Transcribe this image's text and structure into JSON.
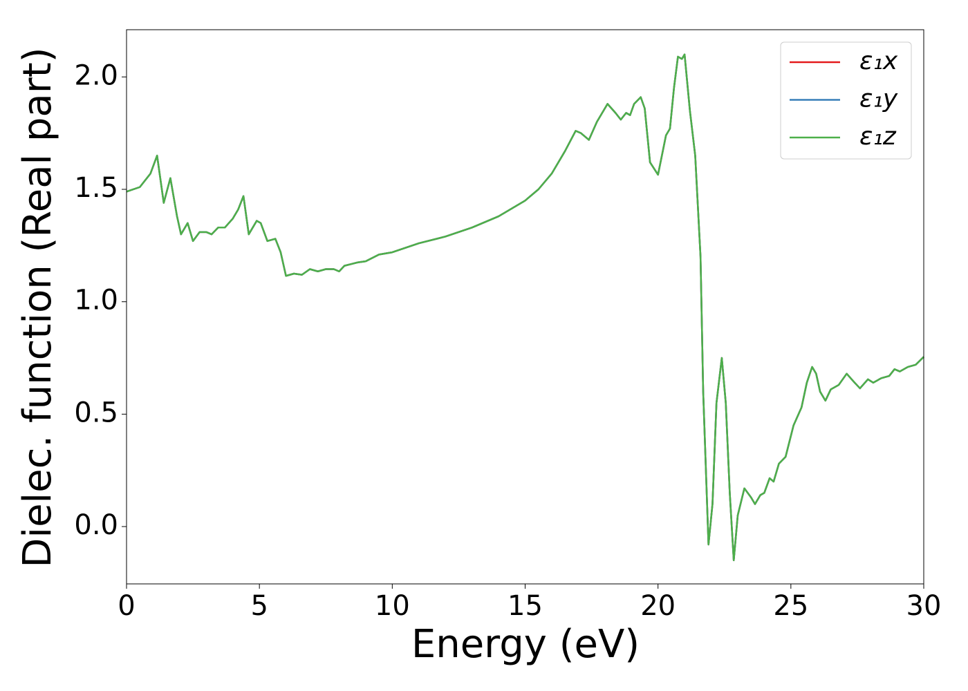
{
  "chart_data": {
    "type": "line",
    "xlabel": "Energy (eV)",
    "ylabel": "Dielec. function (Real part)",
    "x": [
      0,
      0.5,
      0.9,
      1.15,
      1.4,
      1.65,
      1.9,
      2.05,
      2.3,
      2.5,
      2.75,
      3.0,
      3.2,
      3.45,
      3.7,
      4.0,
      4.2,
      4.4,
      4.6,
      4.9,
      5.05,
      5.3,
      5.6,
      5.8,
      6.0,
      6.3,
      6.6,
      6.9,
      7.2,
      7.5,
      7.8,
      8.0,
      8.2,
      8.7,
      9.0,
      9.5,
      10,
      11,
      12,
      13,
      14,
      15,
      15.5,
      16,
      16.5,
      16.9,
      17.1,
      17.4,
      17.7,
      18.1,
      18.4,
      18.6,
      18.8,
      18.95,
      19.1,
      19.35,
      19.5,
      19.7,
      20.0,
      20.3,
      20.45,
      20.6,
      20.75,
      20.9,
      21.0,
      21.2,
      21.4,
      21.6,
      21.7,
      21.9,
      22.05,
      22.2,
      22.4,
      22.55,
      22.7,
      22.85,
      23.0,
      23.25,
      23.5,
      23.65,
      23.85,
      24.0,
      24.2,
      24.35,
      24.55,
      24.8,
      25.1,
      25.4,
      25.6,
      25.8,
      25.95,
      26.1,
      26.3,
      26.5,
      26.8,
      27.1,
      27.4,
      27.6,
      27.9,
      28.1,
      28.4,
      28.7,
      28.9,
      29.1,
      29.4,
      29.7,
      30.0
    ],
    "series": [
      {
        "name": "ε₁x",
        "color": "#e41a1c",
        "values": [
          1.49,
          1.51,
          1.57,
          1.65,
          1.44,
          1.55,
          1.38,
          1.3,
          1.35,
          1.27,
          1.31,
          1.31,
          1.3,
          1.33,
          1.33,
          1.37,
          1.41,
          1.47,
          1.3,
          1.36,
          1.35,
          1.27,
          1.28,
          1.22,
          1.115,
          1.125,
          1.12,
          1.145,
          1.135,
          1.145,
          1.145,
          1.135,
          1.16,
          1.175,
          1.18,
          1.21,
          1.22,
          1.26,
          1.29,
          1.33,
          1.38,
          1.45,
          1.5,
          1.57,
          1.67,
          1.76,
          1.75,
          1.72,
          1.8,
          1.88,
          1.84,
          1.81,
          1.84,
          1.83,
          1.88,
          1.91,
          1.86,
          1.62,
          1.565,
          1.74,
          1.77,
          1.95,
          2.09,
          2.08,
          2.1,
          1.85,
          1.65,
          1.2,
          0.6,
          -0.08,
          0.1,
          0.55,
          0.75,
          0.55,
          0.15,
          -0.15,
          0.05,
          0.17,
          0.13,
          0.1,
          0.14,
          0.15,
          0.215,
          0.2,
          0.28,
          0.31,
          0.45,
          0.53,
          0.64,
          0.71,
          0.68,
          0.6,
          0.56,
          0.61,
          0.63,
          0.68,
          0.64,
          0.615,
          0.655,
          0.64,
          0.66,
          0.67,
          0.7,
          0.69,
          0.71,
          0.72,
          0.755
        ]
      },
      {
        "name": "ε₁y",
        "color": "#377eb8",
        "values": [
          1.49,
          1.51,
          1.57,
          1.65,
          1.44,
          1.55,
          1.38,
          1.3,
          1.35,
          1.27,
          1.31,
          1.31,
          1.3,
          1.33,
          1.33,
          1.37,
          1.41,
          1.47,
          1.3,
          1.36,
          1.35,
          1.27,
          1.28,
          1.22,
          1.115,
          1.125,
          1.12,
          1.145,
          1.135,
          1.145,
          1.145,
          1.135,
          1.16,
          1.175,
          1.18,
          1.21,
          1.22,
          1.26,
          1.29,
          1.33,
          1.38,
          1.45,
          1.5,
          1.57,
          1.67,
          1.76,
          1.75,
          1.72,
          1.8,
          1.88,
          1.84,
          1.81,
          1.84,
          1.83,
          1.88,
          1.91,
          1.86,
          1.62,
          1.565,
          1.74,
          1.77,
          1.95,
          2.09,
          2.08,
          2.1,
          1.85,
          1.65,
          1.2,
          0.6,
          -0.08,
          0.1,
          0.55,
          0.75,
          0.55,
          0.15,
          -0.15,
          0.05,
          0.17,
          0.13,
          0.1,
          0.14,
          0.15,
          0.215,
          0.2,
          0.28,
          0.31,
          0.45,
          0.53,
          0.64,
          0.71,
          0.68,
          0.6,
          0.56,
          0.61,
          0.63,
          0.68,
          0.64,
          0.615,
          0.655,
          0.64,
          0.66,
          0.67,
          0.7,
          0.69,
          0.71,
          0.72,
          0.755
        ]
      },
      {
        "name": "ε₁z",
        "color": "#4daf4a",
        "values": [
          1.49,
          1.51,
          1.57,
          1.65,
          1.44,
          1.55,
          1.38,
          1.3,
          1.35,
          1.27,
          1.31,
          1.31,
          1.3,
          1.33,
          1.33,
          1.37,
          1.41,
          1.47,
          1.3,
          1.36,
          1.35,
          1.27,
          1.28,
          1.22,
          1.115,
          1.125,
          1.12,
          1.145,
          1.135,
          1.145,
          1.145,
          1.135,
          1.16,
          1.175,
          1.18,
          1.21,
          1.22,
          1.26,
          1.29,
          1.33,
          1.38,
          1.45,
          1.5,
          1.57,
          1.67,
          1.76,
          1.75,
          1.72,
          1.8,
          1.88,
          1.84,
          1.81,
          1.84,
          1.83,
          1.88,
          1.91,
          1.86,
          1.62,
          1.565,
          1.74,
          1.77,
          1.95,
          2.09,
          2.08,
          2.1,
          1.85,
          1.65,
          1.2,
          0.6,
          -0.08,
          0.1,
          0.55,
          0.75,
          0.55,
          0.15,
          -0.15,
          0.05,
          0.17,
          0.13,
          0.1,
          0.14,
          0.15,
          0.215,
          0.2,
          0.28,
          0.31,
          0.45,
          0.53,
          0.64,
          0.71,
          0.68,
          0.6,
          0.56,
          0.61,
          0.63,
          0.68,
          0.64,
          0.615,
          0.655,
          0.64,
          0.66,
          0.67,
          0.7,
          0.69,
          0.71,
          0.72,
          0.755
        ]
      }
    ],
    "xlim": [
      0,
      30
    ],
    "xticks": [
      0,
      5,
      10,
      15,
      20,
      25,
      30
    ],
    "ylim": [
      -0.255,
      2.21
    ],
    "yticks": [
      {
        "value": 0,
        "label": "0.0"
      },
      0.5,
      {
        "value": 1,
        "label": "1.0"
      },
      1.5,
      {
        "value": 2,
        "label": "2.0"
      }
    ],
    "grid": false,
    "legend": "upper right"
  }
}
